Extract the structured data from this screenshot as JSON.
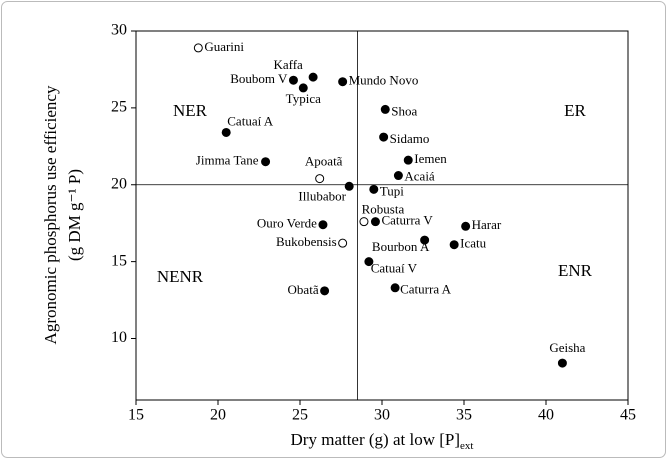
{
  "chart_data": {
    "type": "scatter",
    "x_label": {
      "text": "Dry matter (g) at low [P]",
      "subscript": "ext"
    },
    "y_label": [
      "Agronomic phosphorus use efficiency",
      "(g DM g⁻¹ P)"
    ],
    "xlim": [
      15,
      45
    ],
    "xticks": [
      15,
      20,
      25,
      30,
      35,
      40,
      45
    ],
    "ylim": [
      6,
      30
    ],
    "yticks": [
      10,
      15,
      20,
      25,
      30
    ],
    "vline": 28.5,
    "hline": 20,
    "quadrants": [
      "NER",
      "ER",
      "NENR",
      "ENR"
    ],
    "color": "#000000",
    "points": [
      {
        "label": "Guarini",
        "x": 18.8,
        "y": 28.9,
        "filled": false
      },
      {
        "label": "Boubom V",
        "x": 24.6,
        "y": 26.8,
        "filled": true
      },
      {
        "label": "Kaffa",
        "x": 25.8,
        "y": 27.0,
        "filled": true
      },
      {
        "label": "Typica",
        "x": 25.2,
        "y": 26.3,
        "filled": true
      },
      {
        "label": "Mundo Novo",
        "x": 27.6,
        "y": 26.7,
        "filled": true
      },
      {
        "label": "Shoa",
        "x": 30.2,
        "y": 24.9,
        "filled": true
      },
      {
        "label": "Catuaí A",
        "x": 20.5,
        "y": 23.4,
        "filled": true
      },
      {
        "label": "Sidamo",
        "x": 30.1,
        "y": 23.1,
        "filled": true
      },
      {
        "label": "Jimma Tane",
        "x": 22.9,
        "y": 21.5,
        "filled": true
      },
      {
        "label": "Iemen",
        "x": 31.6,
        "y": 21.6,
        "filled": true
      },
      {
        "label": "Acaiá",
        "x": 31.0,
        "y": 20.6,
        "filled": true
      },
      {
        "label": "Apoatã",
        "x": 26.2,
        "y": 20.4,
        "filled": false
      },
      {
        "label": "Illubabor",
        "x": 28.0,
        "y": 19.9,
        "filled": true
      },
      {
        "label": "Tupi",
        "x": 29.5,
        "y": 19.7,
        "filled": true
      },
      {
        "label": "Robusta",
        "x": 28.9,
        "y": 17.6,
        "filled": false
      },
      {
        "label": "Caturra V",
        "x": 29.6,
        "y": 17.6,
        "filled": true
      },
      {
        "label": "Harar",
        "x": 35.1,
        "y": 17.3,
        "filled": true
      },
      {
        "label": "Ouro Verde",
        "x": 26.4,
        "y": 17.4,
        "filled": true
      },
      {
        "label": "Bukobensis",
        "x": 27.6,
        "y": 16.2,
        "filled": false
      },
      {
        "label": "Bourbon A",
        "x": 32.6,
        "y": 16.4,
        "filled": true
      },
      {
        "label": "Icatu",
        "x": 34.4,
        "y": 16.1,
        "filled": true
      },
      {
        "label": "Catuaí V",
        "x": 29.2,
        "y": 15.0,
        "filled": true
      },
      {
        "label": "Obatã",
        "x": 26.5,
        "y": 13.1,
        "filled": true
      },
      {
        "label": "Caturra A",
        "x": 30.8,
        "y": 13.3,
        "filled": true
      },
      {
        "label": "Geisha",
        "x": 41.0,
        "y": 8.4,
        "filled": true
      }
    ]
  }
}
